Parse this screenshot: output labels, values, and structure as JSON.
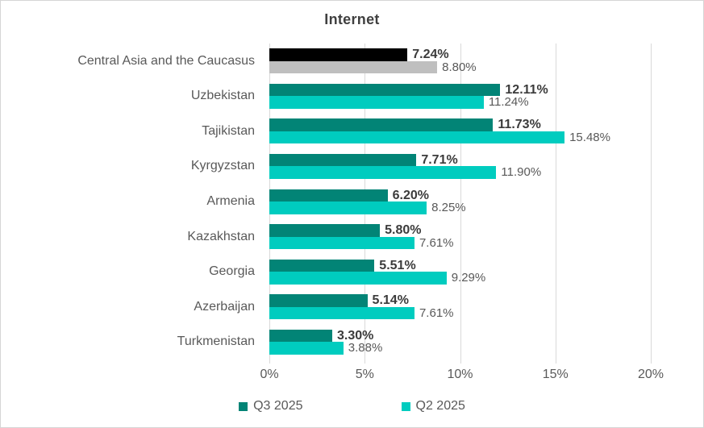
{
  "chart_data": {
    "type": "bar",
    "orientation": "horizontal",
    "title": "Internet",
    "categories": [
      "Central Asia and the Caucasus",
      "Uzbekistan",
      "Tajikistan",
      "Kyrgyzstan",
      "Armenia",
      "Kazakhstan",
      "Georgia",
      "Azerbaijan",
      "Turkmenistan"
    ],
    "series": [
      {
        "name": "Q3 2025",
        "values": [
          7.24,
          12.11,
          11.73,
          7.71,
          6.2,
          5.8,
          5.51,
          5.14,
          3.3
        ],
        "labels": [
          "7.24%",
          "12.11%",
          "11.73%",
          "7.71%",
          "6.20%",
          "5.80%",
          "5.51%",
          "5.14%",
          "3.30%"
        ],
        "color": "#028476",
        "point_colors": [
          "#000000",
          "#028476",
          "#028476",
          "#028476",
          "#028476",
          "#028476",
          "#028476",
          "#028476",
          "#028476"
        ]
      },
      {
        "name": "Q2 2025",
        "values": [
          8.8,
          11.24,
          15.48,
          11.9,
          8.25,
          7.61,
          9.29,
          7.61,
          3.88
        ],
        "labels": [
          "8.80%",
          "11.24%",
          "15.48%",
          "11.90%",
          "8.25%",
          "7.61%",
          "9.29%",
          "7.61%",
          "3.88%"
        ],
        "color": "#00CCBF",
        "point_colors": [
          "#BFBFBF",
          "#00CCBF",
          "#00CCBF",
          "#00CCBF",
          "#00CCBF",
          "#00CCBF",
          "#00CCBF",
          "#00CCBF",
          "#00CCBF"
        ]
      }
    ],
    "x_axis": {
      "min": 0,
      "max": 20,
      "ticks": [
        0,
        5,
        10,
        15,
        20
      ],
      "tick_labels": [
        "0%",
        "5%",
        "10%",
        "15%",
        "20%"
      ]
    },
    "grid": true,
    "legend_position": "bottom",
    "legend_items": [
      {
        "label": "Q3 2025",
        "color": "#028476"
      },
      {
        "label": "Q2 2025",
        "color": "#00CCBF"
      }
    ],
    "style_colors": {
      "gridline": "#d9d9d9",
      "axis_text": "#595959",
      "category_text": "#595959",
      "title_text": "#404040"
    }
  }
}
